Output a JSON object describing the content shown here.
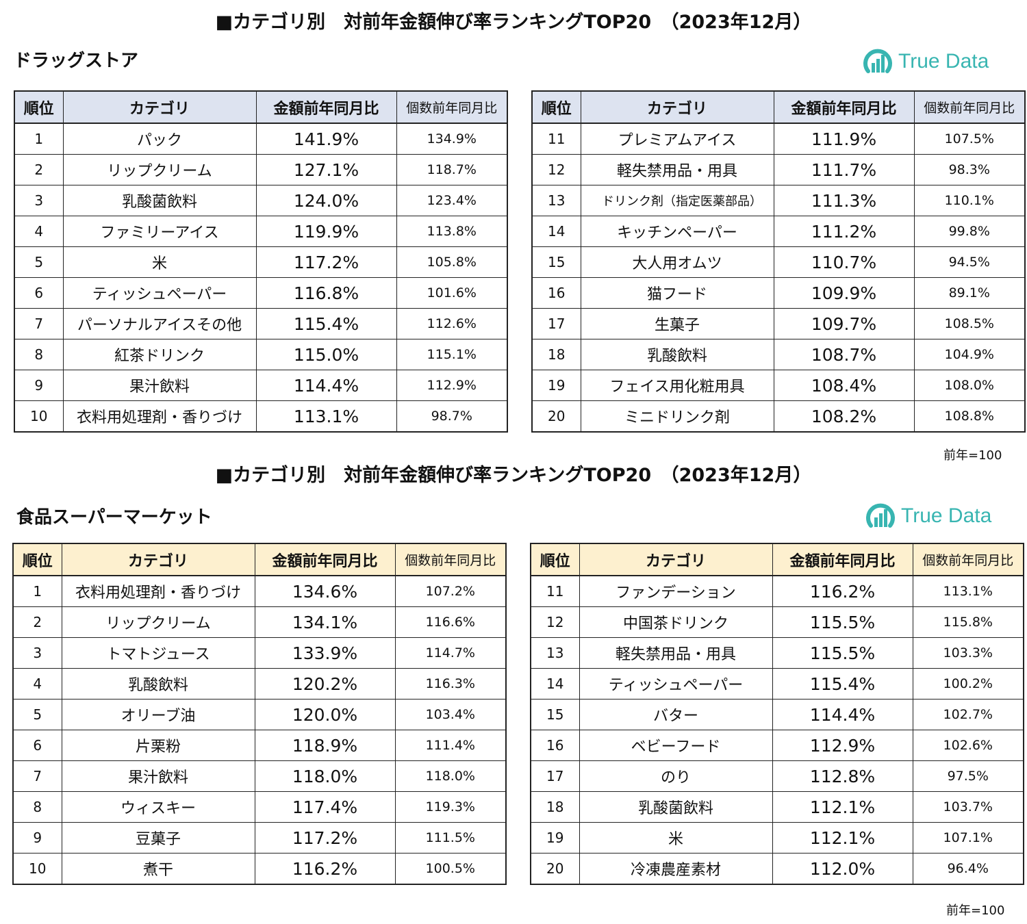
{
  "sections": [
    {
      "title": "■カテゴリ別　対前年金額伸び率ランキングTOP20　（2023年12月）",
      "subtitle": "ドラッグストア",
      "logo_text": "True Data",
      "headers": {
        "rank": "順位",
        "category": "カテゴリ",
        "amount": "金額前年同月比",
        "count": "個数前年同月比"
      },
      "note": "前年=100",
      "left_rows": [
        {
          "rank": "1",
          "category": "パック",
          "amount": "141.9%",
          "count": "134.9%"
        },
        {
          "rank": "2",
          "category": "リップクリーム",
          "amount": "127.1%",
          "count": "118.7%"
        },
        {
          "rank": "3",
          "category": "乳酸菌飲料",
          "amount": "124.0%",
          "count": "123.4%"
        },
        {
          "rank": "4",
          "category": "ファミリーアイス",
          "amount": "119.9%",
          "count": "113.8%"
        },
        {
          "rank": "5",
          "category": "米",
          "amount": "117.2%",
          "count": "105.8%"
        },
        {
          "rank": "6",
          "category": "ティッシュペーパー",
          "amount": "116.8%",
          "count": "101.6%"
        },
        {
          "rank": "7",
          "category": "パーソナルアイスその他",
          "amount": "115.4%",
          "count": "112.6%"
        },
        {
          "rank": "8",
          "category": "紅茶ドリンク",
          "amount": "115.0%",
          "count": "115.1%"
        },
        {
          "rank": "9",
          "category": "果汁飲料",
          "amount": "114.4%",
          "count": "112.9%"
        },
        {
          "rank": "10",
          "category": "衣料用処理剤・香りづけ",
          "amount": "113.1%",
          "count": "98.7%"
        }
      ],
      "right_rows": [
        {
          "rank": "11",
          "category": "プレミアムアイス",
          "amount": "111.9%",
          "count": "107.5%"
        },
        {
          "rank": "12",
          "category": "軽失禁用品・用具",
          "amount": "111.7%",
          "count": "98.3%"
        },
        {
          "rank": "13",
          "category": "ドリンク剤（指定医薬部品）",
          "amount": "111.3%",
          "count": "110.1%"
        },
        {
          "rank": "14",
          "category": "キッチンペーパー",
          "amount": "111.2%",
          "count": "99.8%"
        },
        {
          "rank": "15",
          "category": "大人用オムツ",
          "amount": "110.7%",
          "count": "94.5%"
        },
        {
          "rank": "16",
          "category": "猫フード",
          "amount": "109.9%",
          "count": "89.1%"
        },
        {
          "rank": "17",
          "category": "生菓子",
          "amount": "109.7%",
          "count": "108.5%"
        },
        {
          "rank": "18",
          "category": "乳酸飲料",
          "amount": "108.7%",
          "count": "104.9%"
        },
        {
          "rank": "19",
          "category": "フェイス用化粧用具",
          "amount": "108.4%",
          "count": "108.0%"
        },
        {
          "rank": "20",
          "category": "ミニドリンク剤",
          "amount": "108.2%",
          "count": "108.8%"
        }
      ]
    },
    {
      "title": "■カテゴリ別　対前年金額伸び率ランキングTOP20　（2023年12月）",
      "subtitle": "食品スーパーマーケット",
      "logo_text": "True Data",
      "headers": {
        "rank": "順位",
        "category": "カテゴリ",
        "amount": "金額前年同月比",
        "count": "個数前年同月比"
      },
      "note": "前年=100",
      "left_rows": [
        {
          "rank": "1",
          "category": "衣料用処理剤・香りづけ",
          "amount": "134.6%",
          "count": "107.2%"
        },
        {
          "rank": "2",
          "category": "リップクリーム",
          "amount": "134.1%",
          "count": "116.6%"
        },
        {
          "rank": "3",
          "category": "トマトジュース",
          "amount": "133.9%",
          "count": "114.7%"
        },
        {
          "rank": "4",
          "category": "乳酸飲料",
          "amount": "120.2%",
          "count": "116.3%"
        },
        {
          "rank": "5",
          "category": "オリーブ油",
          "amount": "120.0%",
          "count": "103.4%"
        },
        {
          "rank": "6",
          "category": "片栗粉",
          "amount": "118.9%",
          "count": "111.4%"
        },
        {
          "rank": "7",
          "category": "果汁飲料",
          "amount": "118.0%",
          "count": "118.0%"
        },
        {
          "rank": "8",
          "category": "ウィスキー",
          "amount": "117.4%",
          "count": "119.3%"
        },
        {
          "rank": "9",
          "category": "豆菓子",
          "amount": "117.2%",
          "count": "111.5%"
        },
        {
          "rank": "10",
          "category": "煮干",
          "amount": "116.2%",
          "count": "100.5%"
        }
      ],
      "right_rows": [
        {
          "rank": "11",
          "category": "ファンデーション",
          "amount": "116.2%",
          "count": "113.1%"
        },
        {
          "rank": "12",
          "category": "中国茶ドリンク",
          "amount": "115.5%",
          "count": "115.8%"
        },
        {
          "rank": "13",
          "category": "軽失禁用品・用具",
          "amount": "115.5%",
          "count": "103.3%"
        },
        {
          "rank": "14",
          "category": "ティッシュペーパー",
          "amount": "115.4%",
          "count": "100.2%"
        },
        {
          "rank": "15",
          "category": "バター",
          "amount": "114.4%",
          "count": "102.7%"
        },
        {
          "rank": "16",
          "category": "ベビーフード",
          "amount": "112.9%",
          "count": "102.6%"
        },
        {
          "rank": "17",
          "category": "のり",
          "amount": "112.8%",
          "count": "97.5%"
        },
        {
          "rank": "18",
          "category": "乳酸菌飲料",
          "amount": "112.1%",
          "count": "103.7%"
        },
        {
          "rank": "19",
          "category": "米",
          "amount": "112.1%",
          "count": "107.1%"
        },
        {
          "rank": "20",
          "category": "冷凍農産素材",
          "amount": "112.0%",
          "count": "96.4%"
        }
      ]
    }
  ]
}
